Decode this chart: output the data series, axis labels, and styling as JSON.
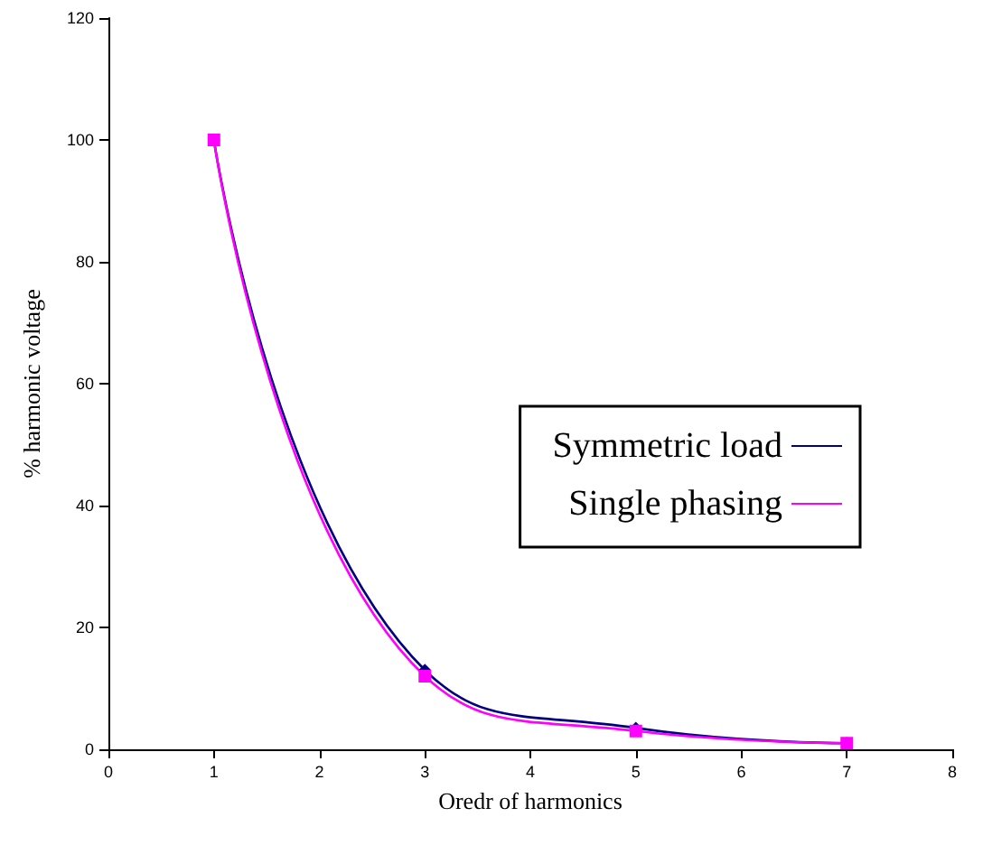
{
  "chart_data": {
    "type": "line",
    "xlabel": "Oredr of harmonics",
    "ylabel": "% harmonic voltage",
    "x": [
      1,
      3,
      5,
      7
    ],
    "series": [
      {
        "name": "Symmetric load",
        "color": "#000080",
        "marker": "diamond",
        "values": [
          100,
          13,
          3.5,
          1
        ]
      },
      {
        "name": "Single phasing",
        "color": "#ff00ff",
        "marker": "square",
        "values": [
          100,
          12,
          3,
          1
        ]
      }
    ],
    "xlim": [
      0,
      8
    ],
    "xticks": [
      0,
      1,
      2,
      3,
      4,
      5,
      6,
      7,
      8
    ],
    "ylim": [
      0,
      120
    ],
    "yticks": [
      0,
      20,
      40,
      60,
      80,
      100,
      120
    ],
    "grid": false,
    "legend": "right",
    "line_style": "solid"
  }
}
